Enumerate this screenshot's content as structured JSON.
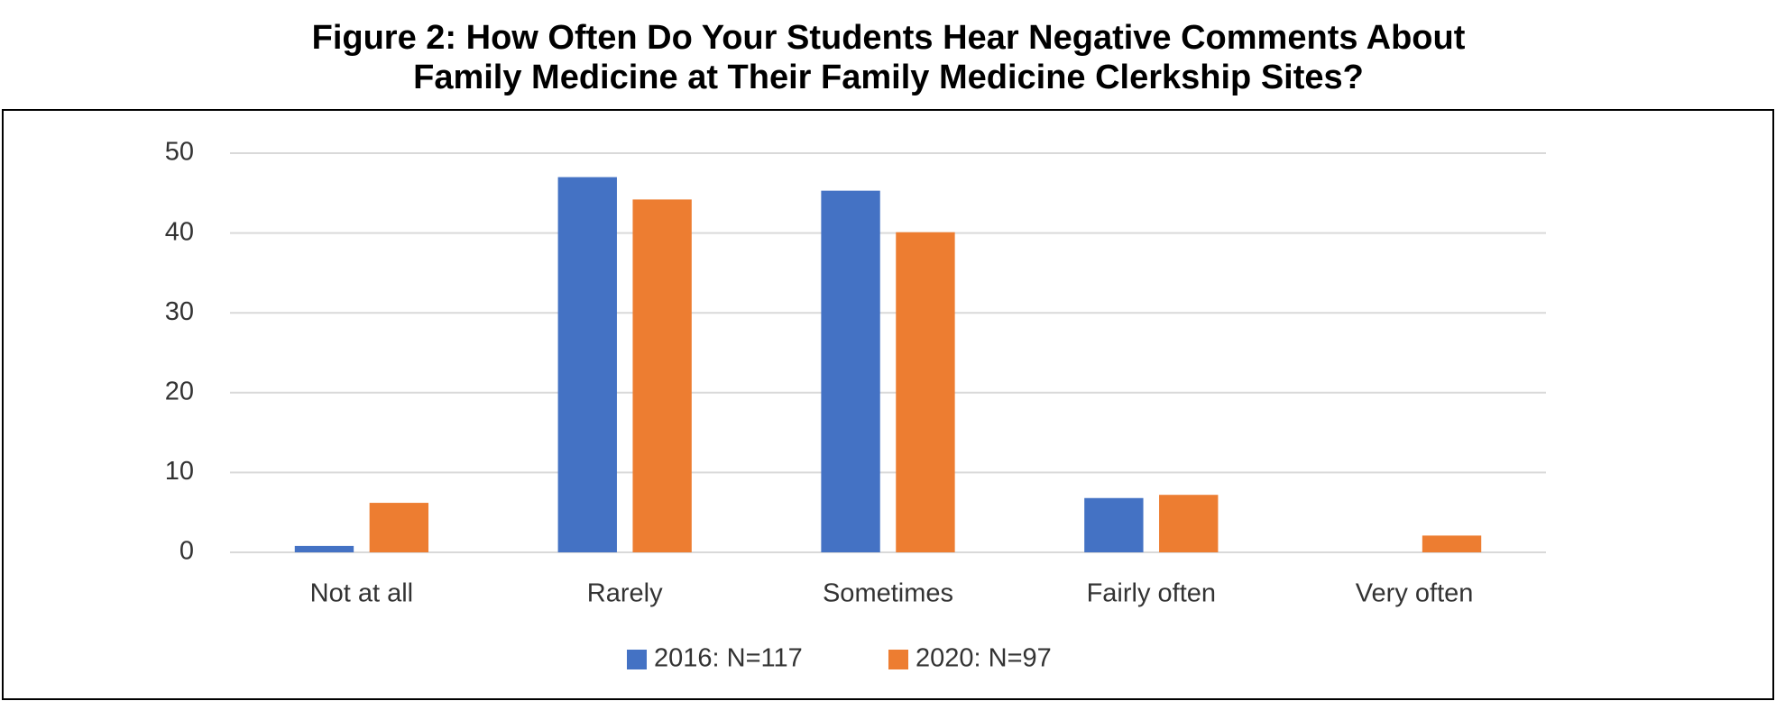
{
  "chart_data": {
    "type": "bar",
    "title": [
      "Figure 2: How Often Do Your Students Hear Negative Comments About",
      "Family Medicine at Their Family Medicine Clerkship Sites?"
    ],
    "categories": [
      "Not at all",
      "Rarely",
      "Sometimes",
      "Fairly often",
      "Very often"
    ],
    "series": [
      {
        "name": "2016: N=117",
        "color": "#4472c4",
        "values": [
          0.8,
          47,
          45.3,
          6.8,
          0
        ]
      },
      {
        "name": "2020: N=97",
        "color": "#ed7d31",
        "values": [
          6.2,
          44.2,
          40.1,
          7.2,
          2.1
        ]
      }
    ],
    "ylim": [
      0,
      50
    ],
    "yticks": [
      0,
      10,
      20,
      30,
      40,
      50
    ],
    "grid": true,
    "legend": "bottom"
  }
}
